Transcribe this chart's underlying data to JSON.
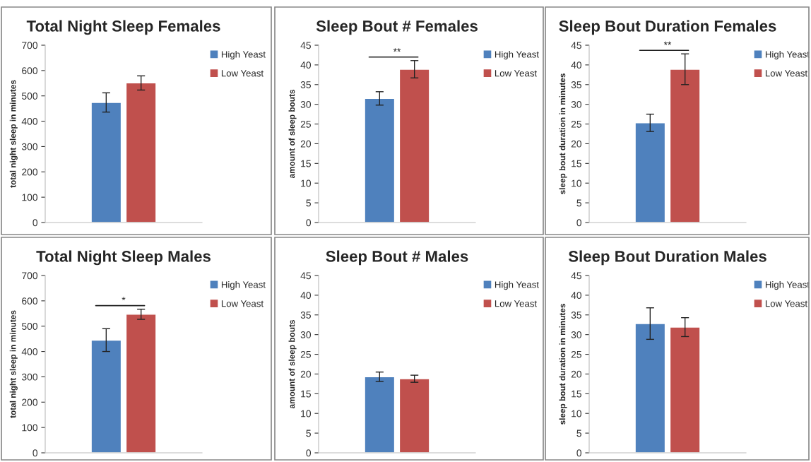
{
  "chart_data": [
    {
      "type": "bar",
      "title": "Total Night Sleep Females",
      "ylabel": "total night sleep in minutes",
      "categories": [
        null
      ],
      "ylim": [
        0,
        700
      ],
      "yticks": [
        0,
        100,
        200,
        300,
        400,
        500,
        600,
        700
      ],
      "tick_labels": "y",
      "legend": "right",
      "grid": false,
      "series": [
        {
          "name": "High Yeast",
          "color": "#4f81bd",
          "values": [
            474
          ],
          "errors": [
            38
          ]
        },
        {
          "name": "Low Yeast",
          "color": "#c0504d",
          "values": [
            551
          ],
          "errors": [
            28
          ]
        }
      ]
    },
    {
      "type": "bar",
      "title": "Sleep Bout # Females",
      "ylabel": "amount of sleep bouts",
      "categories": [
        null
      ],
      "ylim": [
        0,
        45
      ],
      "yticks": [
        0,
        5,
        10,
        15,
        20,
        25,
        30,
        35,
        40,
        45
      ],
      "tick_labels": "y",
      "legend": "right",
      "grid": false,
      "annotations": [
        "**"
      ],
      "series": [
        {
          "name": "High Yeast",
          "color": "#4f81bd",
          "values": [
            31.5
          ],
          "errors": [
            1.7
          ]
        },
        {
          "name": "Low Yeast",
          "color": "#c0504d",
          "values": [
            38.9
          ],
          "errors": [
            2.2
          ]
        }
      ]
    },
    {
      "type": "bar",
      "title": "Sleep Bout Duration Females",
      "ylabel": "sleep bout duration in minutes",
      "categories": [
        null
      ],
      "ylim": [
        0,
        45
      ],
      "yticks": [
        0,
        5,
        10,
        15,
        20,
        25,
        30,
        35,
        40,
        45
      ],
      "tick_labels": "y",
      "legend": "right",
      "grid": false,
      "annotations": [
        "**"
      ],
      "series": [
        {
          "name": "High Yeast",
          "color": "#4f81bd",
          "values": [
            25.3
          ],
          "errors": [
            2.2
          ]
        },
        {
          "name": "Low Yeast",
          "color": "#c0504d",
          "values": [
            38.9
          ],
          "errors": [
            3.9
          ]
        }
      ]
    },
    {
      "type": "bar",
      "title": "Total Night Sleep Males",
      "ylabel": "total night sleep in minutes",
      "categories": [
        null
      ],
      "ylim": [
        0,
        700
      ],
      "yticks": [
        0,
        100,
        200,
        300,
        400,
        500,
        600,
        700
      ],
      "tick_labels": "y",
      "legend": "right",
      "grid": false,
      "annotations": [
        "*"
      ],
      "series": [
        {
          "name": "High Yeast",
          "color": "#4f81bd",
          "values": [
            445
          ],
          "errors": [
            45
          ]
        },
        {
          "name": "Low Yeast",
          "color": "#c0504d",
          "values": [
            547
          ],
          "errors": [
            20
          ]
        }
      ]
    },
    {
      "type": "bar",
      "title": "Sleep Bout # Males",
      "ylabel": "amount of sleep bouts",
      "categories": [
        null
      ],
      "ylim": [
        0,
        45
      ],
      "yticks": [
        0,
        5,
        10,
        15,
        20,
        25,
        30,
        35,
        40,
        45
      ],
      "tick_labels": "y",
      "legend": "right",
      "grid": false,
      "series": [
        {
          "name": "High Yeast",
          "color": "#4f81bd",
          "values": [
            19.3
          ],
          "errors": [
            1.2
          ]
        },
        {
          "name": "Low Yeast",
          "color": "#c0504d",
          "values": [
            18.8
          ],
          "errors": [
            0.9
          ]
        }
      ]
    },
    {
      "type": "bar",
      "title": "Sleep Bout Duration Males",
      "ylabel": "sleep bout duration in minutes",
      "categories": [
        null
      ],
      "ylim": [
        0,
        45
      ],
      "yticks": [
        0,
        5,
        10,
        15,
        20,
        25,
        30,
        35,
        40,
        45
      ],
      "tick_labels": "y",
      "legend": "right",
      "grid": false,
      "series": [
        {
          "name": "High Yeast",
          "color": "#4f81bd",
          "values": [
            32.8
          ],
          "errors": [
            4
          ]
        },
        {
          "name": "Low Yeast",
          "color": "#c0504d",
          "values": [
            31.9
          ],
          "errors": [
            2.4
          ]
        }
      ]
    }
  ]
}
